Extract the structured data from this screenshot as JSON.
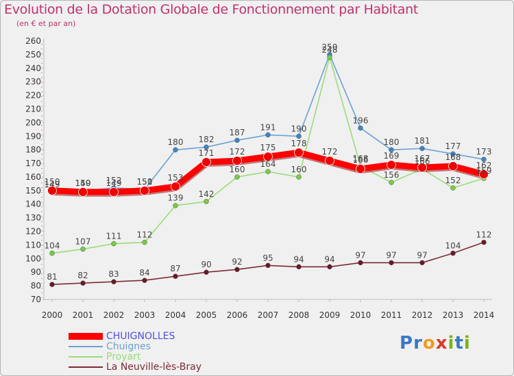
{
  "title": "Evolution de la Dotation Globale de Fonctionnement par Habitant",
  "subtitle": "(en € et par an)",
  "logo": {
    "letters": [
      {
        "ch": "P",
        "color": "#3a78c2"
      },
      {
        "ch": "r",
        "color": "#3a78c2"
      },
      {
        "ch": "o",
        "color": "#f29a1e"
      },
      {
        "ch": "x",
        "color": "#d9392b"
      },
      {
        "ch": "i",
        "color": "#7ab317"
      },
      {
        "ch": "t",
        "color": "#3a78c2"
      },
      {
        "ch": "i",
        "color": "#7ab317"
      }
    ]
  },
  "chart_data": {
    "type": "line",
    "title": "Evolution de la Dotation Globale de Fonctionnement par Habitant",
    "ylabel": "(en € et par an)",
    "xlabel": "",
    "ylim": [
      70,
      260
    ],
    "ytick_step": 10,
    "grid": false,
    "categories": [
      "2000",
      "2001",
      "2002",
      "2003",
      "2004",
      "2005",
      "2006",
      "2007",
      "2008",
      "2009",
      "2010",
      "2011",
      "2012",
      "2013",
      "2014"
    ],
    "series": [
      {
        "name": "CHUIGNOLLES",
        "color": "#ff0000",
        "marker_color": "#ee0000",
        "thick": true,
        "values": [
          150,
          149,
          149,
          150,
          153,
          171,
          172,
          175,
          178,
          172,
          166,
          169,
          167,
          168,
          162
        ]
      },
      {
        "name": "Chuignes",
        "color": "#6aa2d4",
        "marker_color": "#3d85c6",
        "thick": false,
        "values": [
          149,
          150,
          152,
          151,
          180,
          182,
          187,
          191,
          190,
          250,
          196,
          180,
          181,
          177,
          173
        ]
      },
      {
        "name": "Proyart",
        "color": "#99dd77",
        "marker_color": "#77cc44",
        "thick": false,
        "values": [
          104,
          107,
          111,
          112,
          139,
          142,
          160,
          164,
          160,
          248,
          168,
          156,
          166,
          152,
          159
        ]
      },
      {
        "name": "La Neuville-lès-Bray",
        "color": "#7a2a35",
        "marker_color": "#6a1a25",
        "thick": false,
        "values": [
          81,
          82,
          83,
          84,
          87,
          90,
          92,
          95,
          94,
          94,
          97,
          97,
          97,
          104,
          112
        ]
      }
    ],
    "legend_position": "bottom-left"
  }
}
